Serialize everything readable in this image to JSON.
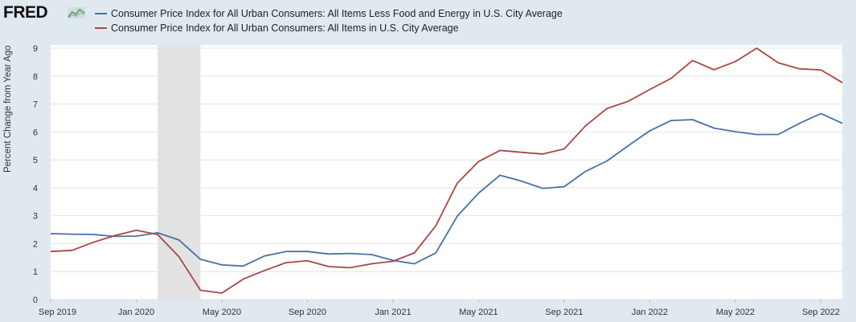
{
  "brand": {
    "logo_text": "FRED",
    "logo_icon": "line-chart-icon"
  },
  "chart_data": {
    "type": "line",
    "ylabel": "Percent Change from Year Ago",
    "xlabel": "",
    "ylim": [
      0,
      9
    ],
    "yticks": [
      "0",
      "1",
      "2",
      "3",
      "4",
      "5",
      "6",
      "7",
      "8",
      "9"
    ],
    "x_start": "Sep 2019",
    "x_end": "Oct 2022",
    "xtick_labels": [
      "Sep 2019",
      "Jan 2020",
      "May 2020",
      "Sep 2020",
      "Jan 2021",
      "May 2021",
      "Sep 2021",
      "Jan 2022",
      "May 2022",
      "Sep 2022"
    ],
    "recession_shading": {
      "start": "Feb 2020",
      "end": "Apr 2020",
      "color": "#e2e2e2"
    },
    "grid": true,
    "legend": "top-left",
    "x": [
      "Sep 2019",
      "Oct 2019",
      "Nov 2019",
      "Dec 2019",
      "Jan 2020",
      "Feb 2020",
      "Mar 2020",
      "Apr 2020",
      "May 2020",
      "Jun 2020",
      "Jul 2020",
      "Aug 2020",
      "Sep 2020",
      "Oct 2020",
      "Nov 2020",
      "Dec 2020",
      "Jan 2021",
      "Feb 2021",
      "Mar 2021",
      "Apr 2021",
      "May 2021",
      "Jun 2021",
      "Jul 2021",
      "Aug 2021",
      "Sep 2021",
      "Oct 2021",
      "Nov 2021",
      "Dec 2021",
      "Jan 2022",
      "Feb 2022",
      "Mar 2022",
      "Apr 2022",
      "May 2022",
      "Jun 2022",
      "Jul 2022",
      "Aug 2022",
      "Sep 2022",
      "Oct 2022"
    ],
    "series": [
      {
        "name": "Consumer Price Index for All Urban Consumers: All Items Less Food and Energy in U.S. City Average",
        "color": "#4572a7",
        "values": [
          2.36,
          2.34,
          2.33,
          2.26,
          2.27,
          2.39,
          2.13,
          1.44,
          1.24,
          1.2,
          1.56,
          1.72,
          1.72,
          1.63,
          1.65,
          1.61,
          1.4,
          1.28,
          1.67,
          2.98,
          3.81,
          4.45,
          4.24,
          3.98,
          4.04,
          4.59,
          4.96,
          5.51,
          6.04,
          6.41,
          6.44,
          6.14,
          6.01,
          5.91,
          5.91,
          6.31,
          6.66,
          6.31
        ]
      },
      {
        "name": "Consumer Price Index for All Urban Consumers: All Items in U.S. City Average",
        "color": "#aa4643",
        "values": [
          1.72,
          1.76,
          2.05,
          2.29,
          2.48,
          2.33,
          1.53,
          0.33,
          0.23,
          0.73,
          1.04,
          1.32,
          1.39,
          1.18,
          1.14,
          1.28,
          1.37,
          1.67,
          2.64,
          4.16,
          4.94,
          5.34,
          5.27,
          5.21,
          5.39,
          6.22,
          6.84,
          7.1,
          7.52,
          7.92,
          8.56,
          8.23,
          8.52,
          9.0,
          8.48,
          8.26,
          8.22,
          7.77
        ]
      }
    ]
  }
}
